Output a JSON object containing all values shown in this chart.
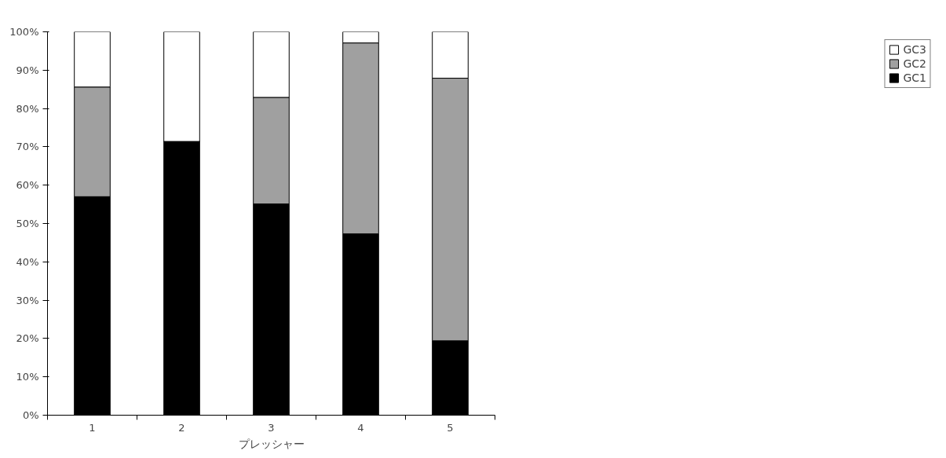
{
  "chart_data": {
    "type": "bar",
    "stacked": true,
    "xlabel": "プレッシャー",
    "categories": [
      "1",
      "2",
      "3",
      "4",
      "5"
    ],
    "series": [
      {
        "name": "GC1",
        "color": "#000000",
        "values": [
          57.0,
          71.4,
          55.1,
          47.3,
          19.4
        ]
      },
      {
        "name": "GC2",
        "color": "#a0a0a0",
        "values": [
          28.6,
          0,
          27.8,
          49.8,
          68.5
        ]
      },
      {
        "name": "GC3",
        "color": "#ffffff",
        "values": [
          14.4,
          28.6,
          17.1,
          2.9,
          12.1
        ]
      }
    ],
    "ylim": [
      0,
      100
    ],
    "yticks": [
      {
        "value": 0,
        "label": "0%"
      },
      {
        "value": 10,
        "label": "10%"
      },
      {
        "value": 20,
        "label": "20%"
      },
      {
        "value": 30,
        "label": "30%"
      },
      {
        "value": 40,
        "label": "40%"
      },
      {
        "value": 50,
        "label": "50%"
      },
      {
        "value": 60,
        "label": "60%"
      },
      {
        "value": 70,
        "label": "70%"
      },
      {
        "value": 80,
        "label": "80%"
      },
      {
        "value": 90,
        "label": "90%"
      },
      {
        "value": 100,
        "label": "100%"
      }
    ],
    "grid": false,
    "legend": "right"
  }
}
